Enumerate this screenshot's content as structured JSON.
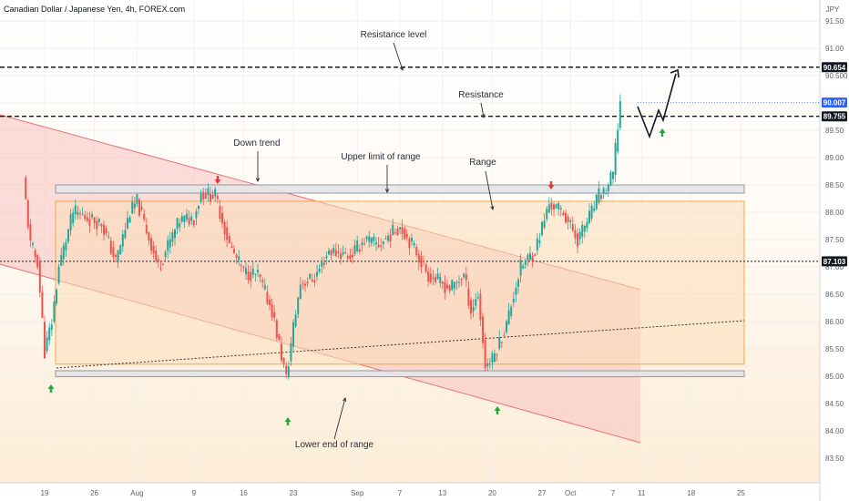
{
  "chart_title": "Canadian Dollar / Japanese Yen, 4h, FOREX.com",
  "currency": "JPY",
  "colors": {
    "up": "#26a69a",
    "down": "#ef5350",
    "channel_fill": "#f7c1bd",
    "range_fill": "#fcdcb8",
    "range_border": "#f5a742",
    "level_band_fill": "#e3e4e8",
    "level_band_border": "#9598a1",
    "arrow_up": "#26a638",
    "arrow_down": "#e53935",
    "current_price_bg": "#2962ff"
  },
  "chart_data": {
    "type": "candlestick",
    "symbol": "CADJPY",
    "timeframe": "4h",
    "ylim": [
      83.5,
      91.7
    ],
    "y_ticks": [
      "91.50",
      "91.00",
      "90.500",
      "90.00",
      "89.50",
      "89.00",
      "88.50",
      "88.00",
      "87.50",
      "87.00",
      "86.50",
      "86.00",
      "85.50",
      "85.00",
      "84.50",
      "84.00",
      "83.50"
    ],
    "x_ticks": [
      "19",
      "26",
      "Aug",
      "9",
      "16",
      "23",
      "Sep",
      "7",
      "13",
      "20",
      "27",
      "Oct",
      "7",
      "11",
      "18",
      "25"
    ],
    "price_path": [
      {
        "t": "Jul 16",
        "p": 88.6
      },
      {
        "t": "Jul 17",
        "p": 87.4
      },
      {
        "t": "Jul 18",
        "p": 87.1
      },
      {
        "t": "Jul 19",
        "p": 85.45
      },
      {
        "t": "Jul 20",
        "p": 86.0
      },
      {
        "t": "Jul 21",
        "p": 87.0
      },
      {
        "t": "Jul 23",
        "p": 88.0
      },
      {
        "t": "Jul 27",
        "p": 87.8
      },
      {
        "t": "Jul 29",
        "p": 87.1
      },
      {
        "t": "Jul 31",
        "p": 88.0
      },
      {
        "t": "Aug 1",
        "p": 88.2
      },
      {
        "t": "Aug 4",
        "p": 87.0
      },
      {
        "t": "Aug 7",
        "p": 87.85
      },
      {
        "t": "Aug 9",
        "p": 87.9
      },
      {
        "t": "Aug 10",
        "p": 88.35
      },
      {
        "t": "Aug 12",
        "p": 88.3
      },
      {
        "t": "Aug 14",
        "p": 87.4
      },
      {
        "t": "Aug 16",
        "p": 86.9
      },
      {
        "t": "Aug 18",
        "p": 86.85
      },
      {
        "t": "Aug 20",
        "p": 86.2
      },
      {
        "t": "Aug 22",
        "p": 84.95
      },
      {
        "t": "Aug 23",
        "p": 85.9
      },
      {
        "t": "Aug 24",
        "p": 86.7
      },
      {
        "t": "Aug 26",
        "p": 86.8
      },
      {
        "t": "Aug 28",
        "p": 87.3
      },
      {
        "t": "Aug 31",
        "p": 87.2
      },
      {
        "t": "Sep 2",
        "p": 87.5
      },
      {
        "t": "Sep 4",
        "p": 87.4
      },
      {
        "t": "Sep 7",
        "p": 87.75
      },
      {
        "t": "Sep 9",
        "p": 87.35
      },
      {
        "t": "Sep 11",
        "p": 86.85
      },
      {
        "t": "Sep 14",
        "p": 86.6
      },
      {
        "t": "Sep 16",
        "p": 86.85
      },
      {
        "t": "Sep 17",
        "p": 86.2
      },
      {
        "t": "Sep 18",
        "p": 86.5
      },
      {
        "t": "Sep 19",
        "p": 85.2
      },
      {
        "t": "Sep 20",
        "p": 85.3
      },
      {
        "t": "Sep 22",
        "p": 85.95
      },
      {
        "t": "Sep 23",
        "p": 86.5
      },
      {
        "t": "Sep 24",
        "p": 87.0
      },
      {
        "t": "Sep 26",
        "p": 87.3
      },
      {
        "t": "Sep 28",
        "p": 88.15
      },
      {
        "t": "Sep 30",
        "p": 88.0
      },
      {
        "t": "Oct 2",
        "p": 87.5
      },
      {
        "t": "Oct 4",
        "p": 88.0
      },
      {
        "t": "Oct 5",
        "p": 88.3
      },
      {
        "t": "Oct 6",
        "p": 88.4
      },
      {
        "t": "Oct 7",
        "p": 88.7
      },
      {
        "t": "Oct 8",
        "p": 90.007
      }
    ],
    "levels": [
      {
        "label": "Resistance level",
        "price": 90.654,
        "tag": "90.654"
      },
      {
        "label": "Resistance",
        "price": 89.755,
        "tag": "89.755"
      },
      {
        "label": "",
        "price": 87.103,
        "tag": "87.103"
      }
    ],
    "current_price": {
      "price": 90.007,
      "tag": "90.007"
    },
    "range": {
      "label": "Range",
      "top": 88.2,
      "bottom": 85.22,
      "upper_band": [
        88.35,
        88.5
      ],
      "lower_band": [
        84.99,
        85.1
      ]
    },
    "channel": {
      "label": "Down trend"
    },
    "annotations": [
      {
        "key": "resistance_level",
        "text": "Resistance level"
      },
      {
        "key": "resistance",
        "text": "Resistance"
      },
      {
        "key": "down_trend",
        "text": "Down trend"
      },
      {
        "key": "upper_limit",
        "text": "Upper limit of range"
      },
      {
        "key": "range",
        "text": "Range"
      },
      {
        "key": "lower_end",
        "text": "Lower end of range"
      }
    ],
    "projection": [
      {
        "t": "Oct 8",
        "p": 90.0
      },
      {
        "t": "Oct 9",
        "p": 89.5
      },
      {
        "t": "Oct 10",
        "p": 89.95
      },
      {
        "t": "Oct 10.5",
        "p": 89.8
      },
      {
        "t": "Oct 12",
        "p": 90.654
      }
    ]
  }
}
